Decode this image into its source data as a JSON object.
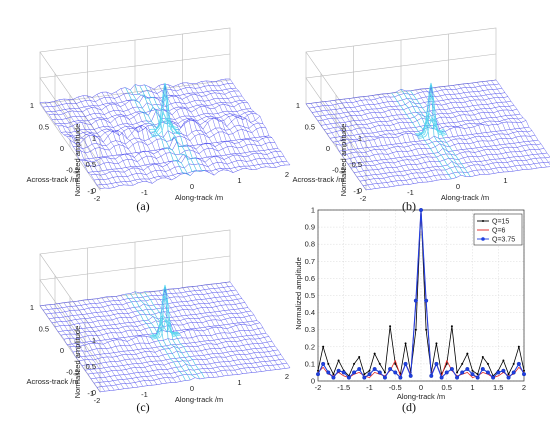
{
  "figure": {
    "captions": [
      "(a)",
      "(b)",
      "(c)",
      "(d)"
    ]
  },
  "chart_data": [
    {
      "panel": "a",
      "type": "surface",
      "zlabel": "Normalized amplitude",
      "xlabel": "Along-track /m",
      "ylabel": "Across-track /m",
      "x_ticks": [
        "-2",
        "-1",
        "0",
        "1",
        "2"
      ],
      "y_ticks": [
        "-1",
        "-0.5",
        "0",
        "0.5",
        "1"
      ],
      "z_ticks": [
        "0",
        "0.5",
        "1"
      ],
      "xlim": [
        -2,
        2
      ],
      "ylim": [
        -1,
        1
      ],
      "zlim": [
        0,
        1
      ],
      "peak": 1.0,
      "sidelobe_level": 0.32,
      "grid": true
    },
    {
      "panel": "b",
      "type": "surface",
      "zlabel": "Normalized amplitude",
      "xlabel": "Along-track /m",
      "ylabel": "Across-track /m",
      "x_ticks": [
        "-2",
        "-1",
        "0",
        "1",
        "2"
      ],
      "y_ticks": [
        "-1",
        "-0.5",
        "0",
        "0.5",
        "1"
      ],
      "z_ticks": [
        "0",
        "0.5",
        "1"
      ],
      "xlim": [
        -2,
        2
      ],
      "ylim": [
        -1,
        1
      ],
      "zlim": [
        0,
        1
      ],
      "peak": 1.0,
      "sidelobe_level": 0.12,
      "grid": true
    },
    {
      "panel": "c",
      "type": "surface",
      "zlabel": "Normalized amplitude",
      "xlabel": "Along-track /m",
      "ylabel": "Across-track /m",
      "x_ticks": [
        "-2",
        "-1",
        "0",
        "1",
        "2"
      ],
      "y_ticks": [
        "-1",
        "-0.5",
        "0",
        "0.5",
        "1"
      ],
      "z_ticks": [
        "0",
        "0.5",
        "1"
      ],
      "xlim": [
        -2,
        2
      ],
      "ylim": [
        -1,
        1
      ],
      "zlim": [
        0,
        1
      ],
      "peak": 1.0,
      "sidelobe_level": 0.1,
      "grid": true
    },
    {
      "panel": "d",
      "type": "line",
      "xlabel": "Along-track /m",
      "ylabel": "Normalized amplitude",
      "xlim": [
        -2,
        2
      ],
      "ylim": [
        0,
        1
      ],
      "x_ticks": [
        "-2",
        "-1.5",
        "-1",
        "-0.5",
        "0",
        "0.5",
        "1",
        "1.5",
        "2"
      ],
      "y_ticks": [
        "0",
        "0.1",
        "0.2",
        "0.3",
        "0.4",
        "0.5",
        "0.6",
        "0.7",
        "0.8",
        "0.9",
        "1"
      ],
      "grid": true,
      "legend_position": "top-right",
      "x": [
        -2.0,
        -1.9,
        -1.8,
        -1.7,
        -1.6,
        -1.5,
        -1.4,
        -1.3,
        -1.2,
        -1.1,
        -1.0,
        -0.9,
        -0.8,
        -0.7,
        -0.6,
        -0.5,
        -0.4,
        -0.3,
        -0.2,
        -0.1,
        0.0,
        0.1,
        0.2,
        0.3,
        0.4,
        0.5,
        0.6,
        0.7,
        0.8,
        0.9,
        1.0,
        1.1,
        1.2,
        1.3,
        1.4,
        1.5,
        1.6,
        1.7,
        1.8,
        1.9,
        2.0
      ],
      "series": [
        {
          "name": "Q=15",
          "color": "#000000",
          "marker": "dot",
          "values": [
            0.06,
            0.2,
            0.1,
            0.04,
            0.12,
            0.06,
            0.03,
            0.1,
            0.14,
            0.04,
            0.06,
            0.16,
            0.1,
            0.05,
            0.32,
            0.1,
            0.04,
            0.22,
            0.05,
            0.3,
            1.0,
            0.3,
            0.05,
            0.22,
            0.04,
            0.1,
            0.32,
            0.05,
            0.1,
            0.16,
            0.06,
            0.04,
            0.14,
            0.1,
            0.03,
            0.06,
            0.12,
            0.04,
            0.1,
            0.2,
            0.06
          ]
        },
        {
          "name": "Q=6",
          "color": "#e02020",
          "marker": "none",
          "values": [
            0.05,
            0.08,
            0.04,
            0.03,
            0.05,
            0.03,
            0.02,
            0.04,
            0.05,
            0.03,
            0.02,
            0.05,
            0.04,
            0.03,
            0.06,
            0.12,
            0.03,
            0.1,
            0.04,
            0.46,
            1.0,
            0.46,
            0.04,
            0.1,
            0.03,
            0.12,
            0.06,
            0.03,
            0.04,
            0.05,
            0.02,
            0.03,
            0.05,
            0.04,
            0.02,
            0.03,
            0.05,
            0.03,
            0.04,
            0.08,
            0.05
          ]
        },
        {
          "name": "Q=3.75",
          "color": "#1f3fe0",
          "marker": "star",
          "values": [
            0.04,
            0.1,
            0.05,
            0.02,
            0.06,
            0.05,
            0.02,
            0.05,
            0.07,
            0.02,
            0.04,
            0.07,
            0.05,
            0.02,
            0.07,
            0.05,
            0.02,
            0.1,
            0.03,
            0.47,
            1.0,
            0.47,
            0.03,
            0.1,
            0.02,
            0.05,
            0.07,
            0.02,
            0.05,
            0.07,
            0.04,
            0.02,
            0.07,
            0.05,
            0.02,
            0.05,
            0.06,
            0.02,
            0.05,
            0.1,
            0.04
          ]
        }
      ]
    }
  ]
}
